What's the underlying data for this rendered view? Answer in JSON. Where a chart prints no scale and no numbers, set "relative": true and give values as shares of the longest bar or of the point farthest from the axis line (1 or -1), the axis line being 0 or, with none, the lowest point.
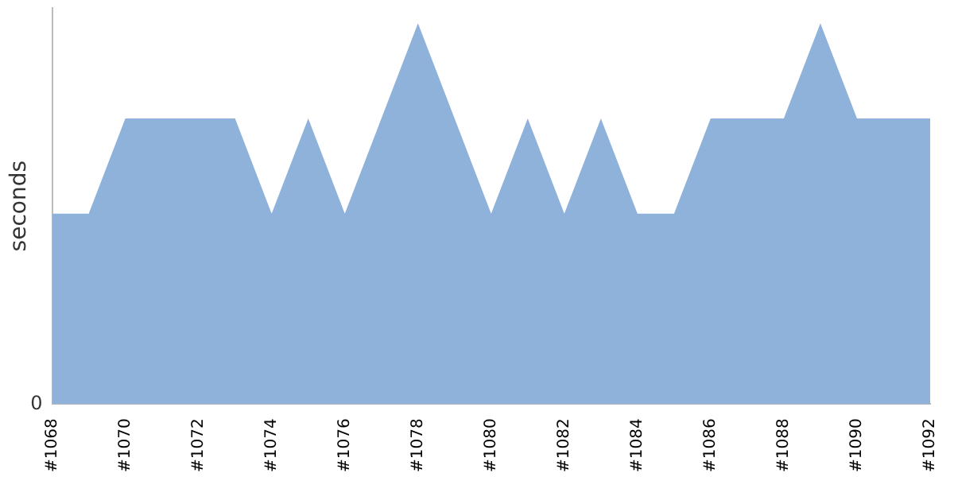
{
  "chart_data": {
    "type": "area",
    "ylabel": "seconds",
    "relative": true,
    "legend": false,
    "grid": false,
    "annotations": [
      "0"
    ],
    "categories": [
      "#1068",
      null,
      "#1070",
      null,
      "#1072",
      null,
      "#1074",
      null,
      "#1076",
      null,
      "#1078",
      null,
      "#1080",
      null,
      "#1082",
      null,
      "#1084",
      null,
      "#1086",
      null,
      "#1088",
      null,
      "#1090",
      null,
      "#1092"
    ],
    "series": [
      {
        "color": "#8fb2db",
        "values": [
          0.5,
          0.5,
          0.75,
          0.75,
          0.75,
          0.75,
          0.5,
          0.75,
          0.5,
          0.75,
          1,
          0.75,
          0.5,
          0.75,
          0.5,
          0.75,
          0.5,
          0.5,
          0.75,
          0.75,
          0.75,
          1,
          0.75,
          0.75,
          0.75
        ]
      }
    ]
  }
}
